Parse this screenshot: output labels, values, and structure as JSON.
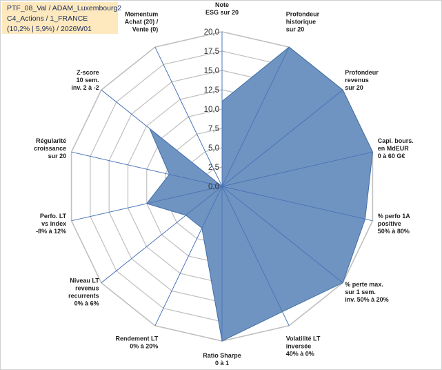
{
  "info_box": {
    "line1": "PTF_08_Val / ADAM_Luxembourg2",
    "line2": "C4_Actions / 1_FRANCE",
    "line3": "(10,2% | 5,9%) / 2026W01"
  },
  "colors": {
    "fill": "#7094c1",
    "stroke": "#3f6ea6",
    "axis": "#4a74b8",
    "grid": "#bfbfbf",
    "info_bg": "#fde9bd"
  },
  "chart_data": {
    "type": "radar",
    "title": "",
    "rmin": 0,
    "rmax": 20,
    "ticks": [
      "0,0",
      "2,5",
      "5,0",
      "7,5",
      "10,0",
      "12,5",
      "15,0",
      "17,5",
      "20,0"
    ],
    "grid": true,
    "categories": [
      [
        "Note",
        "ESG sur 20"
      ],
      [
        "Profondeur",
        "historique",
        "sur 20"
      ],
      [
        "Profondeur",
        "revenus",
        "sur 20"
      ],
      [
        "Capi. bours.",
        "en MdEUR",
        "0 à 60 G€"
      ],
      [
        "% perfo 1A",
        "positive",
        "50% à 80%"
      ],
      [
        "% perte max.",
        "sur 1 sem.",
        "inv. 50% à 20%"
      ],
      [
        "Volatilité LT",
        "inversée",
        "40% à 0%"
      ],
      [
        "Ratio Sharpe",
        "0 à 1"
      ],
      [
        "Rendement LT",
        "0% à 20%"
      ],
      [
        "Niveau LT",
        "revenus",
        "recurrents",
        "0% à 6%"
      ],
      [
        "Perfo. LT",
        "vs index",
        "-8% à 12%"
      ],
      [
        "Régularité",
        "croissance",
        "sur 20"
      ],
      [
        "Z-score",
        "10 sem.",
        "inv. 2 à -2"
      ],
      [
        "Momentum",
        "Achat (20) /",
        "Vente (0)"
      ]
    ],
    "series": [
      {
        "values": [
          11,
          20,
          20,
          20,
          19,
          20,
          18,
          20,
          6,
          6,
          10,
          7,
          12,
          0
        ]
      }
    ]
  }
}
